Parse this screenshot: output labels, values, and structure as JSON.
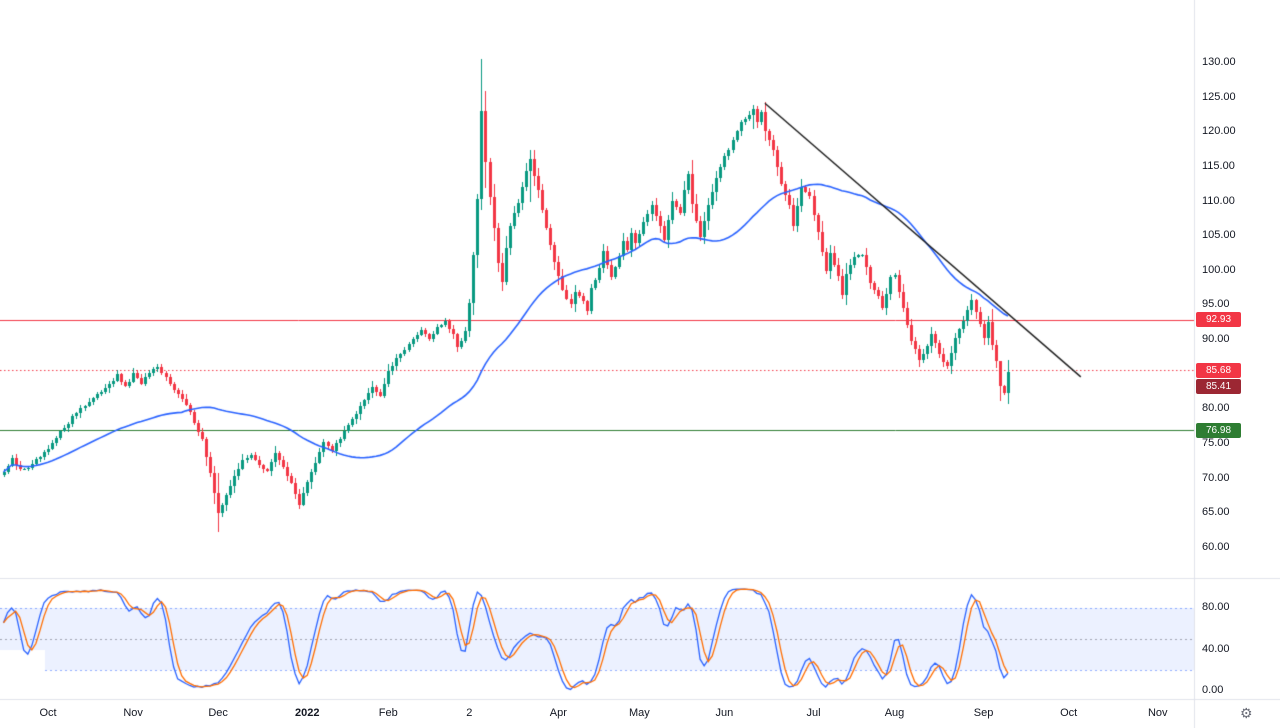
{
  "colors": {
    "background": "#ffffff",
    "border": "#e0e3eb",
    "axis_text": "#131722"
  },
  "time_axis": {
    "gear_icon": "⚙",
    "ticks": [
      {
        "label": "Oct",
        "bar": 11,
        "major": false
      },
      {
        "label": "Nov",
        "bar": 32,
        "major": false
      },
      {
        "label": "Dec",
        "bar": 53,
        "major": false
      },
      {
        "label": "2022",
        "bar": 75,
        "major": true
      },
      {
        "label": "Feb",
        "bar": 95,
        "major": false
      },
      {
        "label": "2",
        "bar": 115,
        "major": false
      },
      {
        "label": "Apr",
        "bar": 137,
        "major": false
      },
      {
        "label": "May",
        "bar": 157,
        "major": false
      },
      {
        "label": "Jun",
        "bar": 178,
        "major": false
      },
      {
        "label": "Jul",
        "bar": 200,
        "major": false
      },
      {
        "label": "Aug",
        "bar": 220,
        "major": false
      },
      {
        "label": "Sep",
        "bar": 242,
        "major": false
      },
      {
        "label": "Oct",
        "bar": 263,
        "major": false
      },
      {
        "label": "Nov",
        "bar": 285,
        "major": false
      }
    ]
  },
  "chart_data": [
    {
      "type": "candlestick",
      "title": "Daily candlestick price pane with moving average, descending trendline and horizontal levels",
      "pane": "price",
      "bars": 249,
      "ylim": [
        60,
        130
      ],
      "y_ticks": [
        "130.00",
        "125.00",
        "120.00",
        "115.00",
        "110.00",
        "105.00",
        "100.00",
        "95.00",
        "90.00",
        "80.00",
        "75.00",
        "70.00",
        "65.00",
        "60.00"
      ],
      "up_color": "#089981",
      "down_color": "#f23645",
      "sma_period": 45,
      "sma_color": "#2962ff",
      "trendline": {
        "from": [
          188,
          124.2
        ],
        "to": [
          266,
          84.7
        ],
        "color": "#1c1c1c"
      },
      "h_lines": [
        {
          "price": 92.93,
          "label": "92.93",
          "style": "solid",
          "color": "#f23645"
        },
        {
          "price": 85.68,
          "label": "85.68",
          "style": "dotted",
          "color": "#f23645"
        },
        {
          "price": 76.98,
          "label": "76.98",
          "style": "solid",
          "color": "#2e7d32"
        }
      ],
      "last_price": {
        "value": 85.41,
        "label": "85.41",
        "badge_color": "#9c2733"
      },
      "wick_overrides": {
        "53": [
          70.8,
          62.3
        ],
        "118": [
          130.6,
          108.8
        ],
        "119": [
          126.0,
          112.0
        ],
        "130": [
          117.4,
          110.0
        ],
        "185": [
          123.9,
          120.5
        ],
        "246": [
          85.8,
          81.2
        ]
      },
      "close_anchors": [
        [
          0,
          71.0
        ],
        [
          2,
          72.8
        ],
        [
          4,
          71.2
        ],
        [
          7,
          72.0
        ],
        [
          11,
          74.2
        ],
        [
          15,
          77.5
        ],
        [
          19,
          80.2
        ],
        [
          23,
          82.0
        ],
        [
          26,
          83.8
        ],
        [
          28,
          84.8
        ],
        [
          30,
          83.2
        ],
        [
          32,
          85.0
        ],
        [
          34,
          83.8
        ],
        [
          36,
          85.2
        ],
        [
          38,
          85.9
        ],
        [
          40,
          84.6
        ],
        [
          43,
          82.2
        ],
        [
          45,
          80.6
        ],
        [
          47,
          78.2
        ],
        [
          49,
          75.6
        ],
        [
          51,
          70.8
        ],
        [
          53,
          64.8
        ],
        [
          55,
          67.8
        ],
        [
          57,
          70.2
        ],
        [
          59,
          72.6
        ],
        [
          61,
          73.6
        ],
        [
          63,
          71.8
        ],
        [
          65,
          71.2
        ],
        [
          67,
          73.6
        ],
        [
          69,
          71.8
        ],
        [
          71,
          69.2
        ],
        [
          73,
          66.4
        ],
        [
          75,
          69.6
        ],
        [
          77,
          72.2
        ],
        [
          79,
          75.2
        ],
        [
          81,
          74.2
        ],
        [
          83,
          75.8
        ],
        [
          86,
          78.6
        ],
        [
          89,
          81.6
        ],
        [
          91,
          83.2
        ],
        [
          93,
          82.2
        ],
        [
          95,
          85.6
        ],
        [
          97,
          87.2
        ],
        [
          99,
          88.8
        ],
        [
          101,
          90.0
        ],
        [
          103,
          91.6
        ],
        [
          105,
          90.2
        ],
        [
          107,
          91.9
        ],
        [
          109,
          92.6
        ],
        [
          111,
          90.6
        ],
        [
          112,
          88.9
        ],
        [
          114,
          91.2
        ],
        [
          115,
          95.2
        ],
        [
          116,
          102.2
        ],
        [
          117,
          110.2
        ],
        [
          118,
          123.0
        ],
        [
          119,
          115.8
        ],
        [
          120,
          110.4
        ],
        [
          121,
          106.2
        ],
        [
          122,
          101.2
        ],
        [
          123,
          98.6
        ],
        [
          124,
          103.2
        ],
        [
          125,
          106.6
        ],
        [
          127,
          110.0
        ],
        [
          129,
          114.4
        ],
        [
          130,
          116.2
        ],
        [
          132,
          111.4
        ],
        [
          133,
          108.8
        ],
        [
          135,
          103.6
        ],
        [
          137,
          99.4
        ],
        [
          138,
          97.2
        ],
        [
          140,
          95.2
        ],
        [
          141,
          96.9
        ],
        [
          143,
          95.4
        ],
        [
          144,
          94.2
        ],
        [
          145,
          97.6
        ],
        [
          147,
          100.2
        ],
        [
          148,
          102.9
        ],
        [
          150,
          99.2
        ],
        [
          152,
          102.2
        ],
        [
          153,
          104.6
        ],
        [
          154,
          103.2
        ],
        [
          155,
          105.6
        ],
        [
          156,
          104.2
        ],
        [
          158,
          106.8
        ],
        [
          160,
          109.6
        ],
        [
          162,
          106.6
        ],
        [
          163,
          104.6
        ],
        [
          165,
          109.9
        ],
        [
          167,
          108.2
        ],
        [
          168,
          111.6
        ],
        [
          169,
          113.9
        ],
        [
          170,
          109.6
        ],
        [
          172,
          104.9
        ],
        [
          174,
          109.2
        ],
        [
          176,
          113.6
        ],
        [
          178,
          116.4
        ],
        [
          180,
          118.9
        ],
        [
          182,
          121.4
        ],
        [
          184,
          122.6
        ],
        [
          185,
          123.3
        ],
        [
          186,
          121.6
        ],
        [
          187,
          122.9
        ],
        [
          188,
          120.2
        ],
        [
          190,
          117.2
        ],
        [
          192,
          112.6
        ],
        [
          194,
          109.6
        ],
        [
          195,
          106.6
        ],
        [
          197,
          112.2
        ],
        [
          199,
          110.6
        ],
        [
          201,
          105.6
        ],
        [
          203,
          100.2
        ],
        [
          204,
          102.6
        ],
        [
          206,
          99.2
        ],
        [
          207,
          96.6
        ],
        [
          208,
          99.6
        ],
        [
          210,
          101.9
        ],
        [
          212,
          102.4
        ],
        [
          214,
          98.2
        ],
        [
          216,
          96.2
        ],
        [
          217,
          94.6
        ],
        [
          219,
          99.2
        ],
        [
          220,
          99.6
        ],
        [
          222,
          94.6
        ],
        [
          224,
          89.9
        ],
        [
          226,
          87.2
        ],
        [
          228,
          89.2
        ],
        [
          229,
          90.9
        ],
        [
          231,
          87.9
        ],
        [
          233,
          86.2
        ],
        [
          235,
          90.2
        ],
        [
          237,
          93.0
        ],
        [
          239,
          95.9
        ],
        [
          241,
          92.2
        ],
        [
          242,
          90.2
        ],
        [
          243,
          92.6
        ],
        [
          244,
          89.2
        ],
        [
          245,
          87.2
        ],
        [
          246,
          83.6
        ],
        [
          247,
          82.6
        ],
        [
          248,
          85.41
        ]
      ]
    },
    {
      "type": "line",
      "title": "Stochastic oscillator pane",
      "pane": "stochastic",
      "k_period": 14,
      "k_smooth": 3,
      "d_period": 3,
      "k_color": "#2962ff",
      "d_color": "#ff6d00",
      "ylim": [
        0,
        100
      ],
      "y_ticks": [
        "80.00",
        "40.00",
        "0.00"
      ],
      "bands": {
        "upper": 80,
        "middle": 50,
        "lower": 20,
        "fill": "rgba(41,98,255,0.09)",
        "band_line_color": "rgba(41,98,255,0.5)",
        "middle_line_color": "rgba(120,123,134,0.65)"
      }
    }
  ]
}
